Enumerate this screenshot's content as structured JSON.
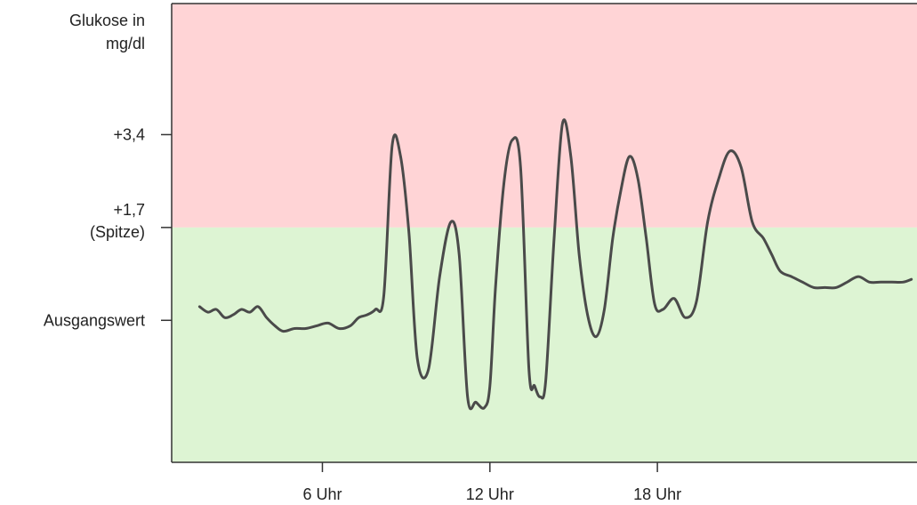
{
  "chart_data": {
    "type": "line",
    "title": "",
    "ylabel": "Glukose in mg/dl",
    "xlabel": "",
    "y_ticks": [
      {
        "value": 3.4,
        "label": "+3,4"
      },
      {
        "value": 1.7,
        "label": "+1,7 (Spitze)"
      },
      {
        "value": 0,
        "label": "Ausgangswert"
      }
    ],
    "x_ticks": [
      {
        "value": 6,
        "label": "6 Uhr"
      },
      {
        "value": 12,
        "label": "12 Uhr"
      },
      {
        "value": 18,
        "label": "18 Uhr"
      }
    ],
    "xlim": [
      0.6,
      27.3
    ],
    "ylim": [
      -2.6,
      5.8
    ],
    "zones": [
      {
        "from": 1.7,
        "to": 5.8,
        "color": "#ffd4d6"
      },
      {
        "from": -2.6,
        "to": 1.7,
        "color": "#ddf4d3"
      }
    ],
    "series": [
      {
        "color": "#4a4a4a",
        "x": [
          1.6,
          1.9,
          2.2,
          2.5,
          2.8,
          3.1,
          3.4,
          3.7,
          4.0,
          4.3,
          4.6,
          5.0,
          5.4,
          5.8,
          6.2,
          6.6,
          7.0,
          7.3,
          7.6,
          7.9,
          8.2,
          8.5,
          8.8,
          9.1,
          9.4,
          9.8,
          10.2,
          10.6,
          10.9,
          11.2,
          11.5,
          11.8,
          12.0,
          12.2,
          12.5,
          12.8,
          13.1,
          13.4,
          13.6,
          13.8,
          14.0,
          14.3,
          14.6,
          14.9,
          15.2,
          15.5,
          15.8,
          16.1,
          16.4,
          16.7,
          17.0,
          17.3,
          17.6,
          17.9,
          18.2,
          18.6,
          19.0,
          19.4,
          19.8,
          20.2,
          20.6,
          21.0,
          21.4,
          21.8,
          22.1,
          22.4,
          22.8,
          23.2,
          23.6,
          24.0,
          24.4,
          24.8,
          25.2,
          25.6,
          26.0,
          26.4,
          26.8,
          27.1
        ],
        "y": [
          0.25,
          0.15,
          0.2,
          0.05,
          0.1,
          0.2,
          0.15,
          0.25,
          0.05,
          -0.1,
          -0.2,
          -0.15,
          -0.15,
          -0.1,
          -0.05,
          -0.15,
          -0.1,
          0.05,
          0.1,
          0.2,
          0.45,
          3.2,
          3.0,
          1.6,
          -0.7,
          -0.9,
          0.8,
          1.8,
          1.2,
          -1.4,
          -1.5,
          -1.6,
          -1.2,
          0.6,
          2.5,
          3.3,
          2.8,
          -0.9,
          -1.2,
          -1.4,
          -1.1,
          1.5,
          3.6,
          3.0,
          1.2,
          0.1,
          -0.3,
          0.2,
          1.5,
          2.4,
          3.0,
          2.6,
          1.5,
          0.3,
          0.2,
          0.4,
          0.05,
          0.35,
          1.8,
          2.6,
          3.1,
          2.8,
          1.8,
          1.5,
          1.2,
          0.9,
          0.8,
          0.7,
          0.6,
          0.6,
          0.6,
          0.7,
          0.8,
          0.7,
          0.7,
          0.7,
          0.7,
          0.75
        ]
      }
    ]
  }
}
